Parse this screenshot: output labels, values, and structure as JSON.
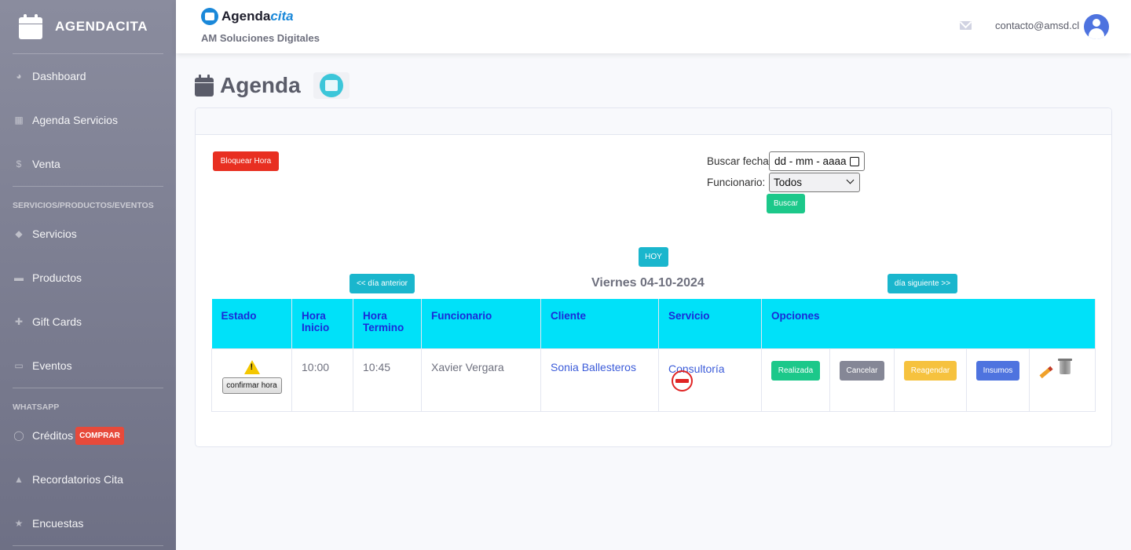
{
  "sidebar": {
    "brand": "AGENDACITA",
    "items_main": [
      {
        "label": "Dashboard",
        "icon": "dashboard-icon"
      },
      {
        "label": "Agenda Servicios",
        "icon": "calendar-icon"
      },
      {
        "label": "Venta",
        "icon": "dollar-icon"
      }
    ],
    "heading_services": "SERVICIOS/PRODUCTOS/EVENTOS",
    "items_services": [
      {
        "label": "Servicios",
        "icon": "tags-icon"
      },
      {
        "label": "Productos",
        "icon": "store-icon"
      },
      {
        "label": "Gift Cards",
        "icon": "gift-icon"
      },
      {
        "label": "Eventos",
        "icon": "desktop-icon"
      }
    ],
    "heading_whatsapp": "WHATSAPP",
    "items_whatsapp": [
      {
        "label": "Créditos",
        "icon": "whatsapp-icon",
        "badge": "COMPRAR"
      },
      {
        "label": "Recordatorios Cita",
        "icon": "bell-icon"
      },
      {
        "label": "Encuestas",
        "icon": "star-icon"
      }
    ]
  },
  "topbar": {
    "logo_part1": "Agenda",
    "logo_part2": "cita",
    "company": "AM Soluciones Digitales",
    "email": "contacto@amsd.cl"
  },
  "page": {
    "title": "Agenda"
  },
  "controls": {
    "block_button": "Bloquear Hora",
    "search_date_label": "Buscar fecha:",
    "date_placeholder": "dd - mm - aaaa",
    "staff_label": "Funcionario:",
    "staff_selected": "Todos",
    "search_button": "Buscar",
    "today_button": "HOY",
    "prev_button": "<< día anterior",
    "next_button": "día siguiente >>",
    "current_date": "Viernes 04-10-2024"
  },
  "table": {
    "headers": {
      "estado": "Estado",
      "hora_inicio_1": "Hora",
      "hora_inicio_2": "Inicio",
      "hora_termino_1": "Hora",
      "hora_termino_2": "Termino",
      "funcionario": "Funcionario",
      "cliente": "Cliente",
      "servicio": "Servicio",
      "opciones": "Opciones"
    },
    "rows": [
      {
        "estado_button": "confirmar hora",
        "hora_inicio": "10:00",
        "hora_termino": "10:45",
        "funcionario": "Xavier Vergara",
        "cliente": "Sonia Ballesteros",
        "servicio": "Consultoría",
        "actions": {
          "realizada": "Realizada",
          "cancelar": "Cancelar",
          "reagendar": "Reagendar",
          "insumos": "Insumos"
        }
      }
    ]
  },
  "colors": {
    "table_header_bg": "#00e1f9",
    "table_header_text": "#1a2bd8",
    "danger": "#e82f21",
    "success": "#1cc88a",
    "info": "#1ab6cd",
    "warning": "#f6c23e",
    "primary": "#4e73df"
  }
}
